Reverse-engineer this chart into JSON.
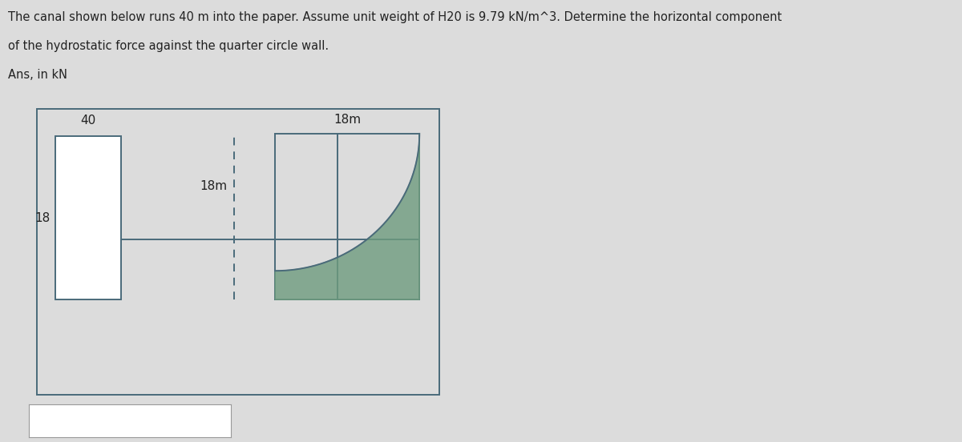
{
  "title_line1": "The canal shown below runs 40 m into the paper. Assume unit weight of H20 is 9.79 kN/m^3. Determine the horizontal component",
  "title_line2": "of the hydrostatic force against the quarter circle wall.",
  "ans_label": "Ans, in kN",
  "label_40": "40",
  "label_18_left": "18",
  "label_18m_mid": "18m",
  "label_18m_top": "18m",
  "bg_color": "#dcdcdc",
  "diagram_bg": "#e8e8e8",
  "line_color": "#4a6a7a",
  "fill_color": "#6e9c7e",
  "fill_alpha": 0.8,
  "answer_box_color": "#ffffff",
  "text_color": "#222222"
}
